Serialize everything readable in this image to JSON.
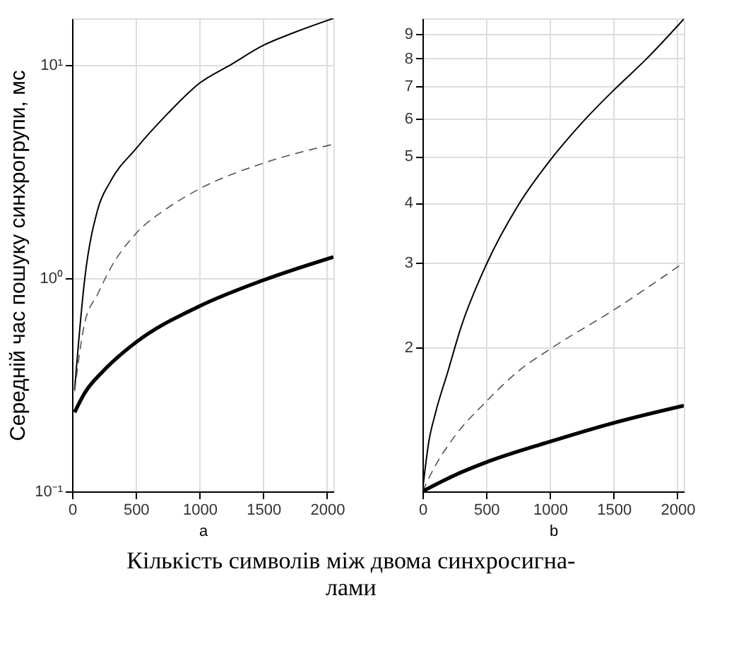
{
  "chart_data": [
    {
      "type": "line",
      "xlabel": "a",
      "ylabel": "Середній час пошуку синхрогрупи, мс",
      "log": "y",
      "grid": true,
      "xlim": [
        0,
        2050
      ],
      "xticks": [
        0,
        500,
        1000,
        1500,
        2000
      ],
      "ylim": [
        0.1,
        16.6
      ],
      "yticks": [
        {
          "value": 0.1,
          "label": "10⁻¹"
        },
        {
          "value": 1,
          "label": "10⁰"
        },
        {
          "value": 10,
          "label": "10¹"
        }
      ],
      "annotations": [
        "Кількість символів між двома синхросигна-\nлами"
      ],
      "series": [
        {
          "color": "#000000",
          "line_style": "solid",
          "x": [
            20,
            100,
            200,
            300,
            500,
            750,
            1000,
            1250,
            1500,
            1750,
            2050
          ],
          "values": [
            0.3,
            1.0,
            2.09,
            2.84,
            4.05,
            5.93,
            8.24,
            10.1,
            12.4,
            14.3,
            16.6
          ]
        },
        {
          "color": "#555555",
          "line_style": "dashed",
          "x": [
            20,
            100,
            200,
            300,
            500,
            750,
            1000,
            1500,
            2050
          ],
          "values": [
            0.295,
            0.62,
            0.84,
            1.11,
            1.62,
            2.14,
            2.63,
            3.47,
            4.26
          ]
        },
        {
          "color": "#000000",
          "line_style": "solid",
          "x": [
            20,
            100,
            250,
            500,
            1000,
            1500,
            2050
          ],
          "values": [
            0.235,
            0.29,
            0.37,
            0.5,
            0.74,
            0.98,
            1.26
          ]
        }
      ]
    },
    {
      "type": "line",
      "xlabel": "b",
      "log": "y",
      "grid": true,
      "xlim": [
        0,
        2050
      ],
      "xticks": [
        0,
        500,
        1000,
        1500,
        2000
      ],
      "ylim": [
        1,
        9.7
      ],
      "yticks": [
        2,
        3,
        4,
        5,
        6,
        7,
        8,
        9
      ],
      "series": [
        {
          "color": "#000000",
          "line_style": "solid",
          "x": [
            0,
            50,
            100,
            200,
            300,
            500,
            750,
            1000,
            1250,
            1500,
            1750,
            2050
          ],
          "values": [
            1.0,
            1.27,
            1.45,
            1.78,
            2.19,
            2.97,
            3.95,
            4.9,
            5.87,
            6.87,
            7.95,
            9.67
          ]
        },
        {
          "color": "#555555",
          "line_style": "dashed",
          "x": [
            0,
            100,
            250,
            500,
            750,
            1000,
            1500,
            2050
          ],
          "values": [
            1.0,
            1.13,
            1.3,
            1.54,
            1.78,
            1.98,
            2.39,
            3.0
          ]
        },
        {
          "color": "#000000",
          "line_style": "solid",
          "x": [
            0,
            250,
            500,
            1000,
            1500,
            2050
          ],
          "values": [
            1.0,
            1.08,
            1.15,
            1.27,
            1.39,
            1.51
          ]
        }
      ]
    }
  ]
}
